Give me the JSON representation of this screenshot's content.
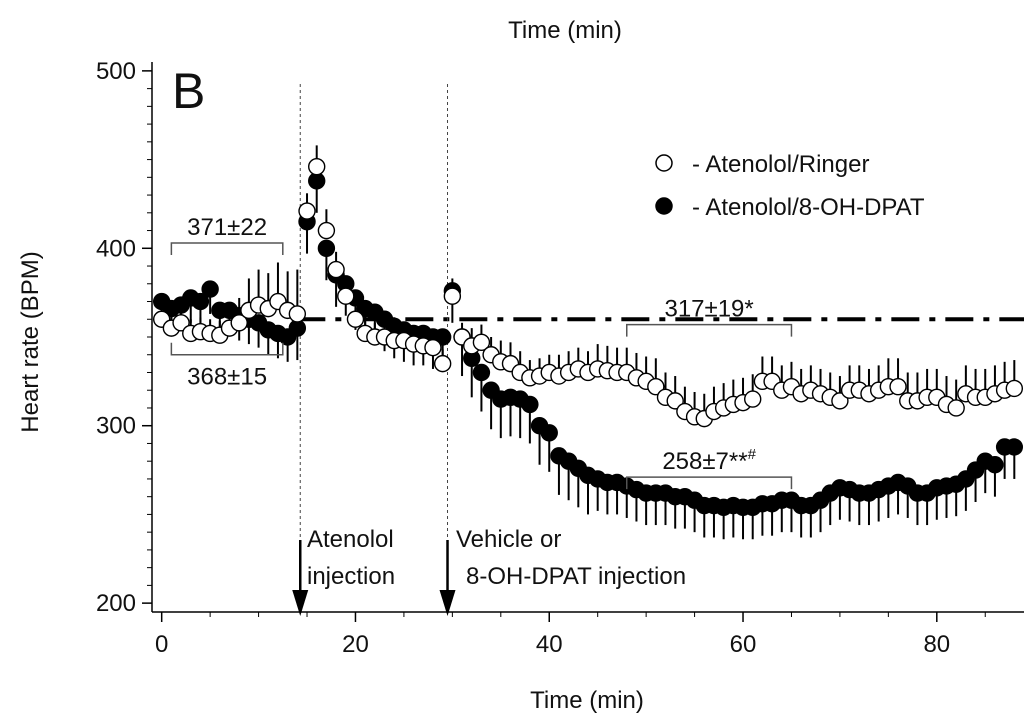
{
  "top_label": "Time (min)",
  "panel_label": "B",
  "chart_data": {
    "type": "scatter",
    "xlabel": "Time (min)",
    "ylabel": "Heart rate (BPM)",
    "xlim": [
      -1,
      89
    ],
    "ylim": [
      195,
      505
    ],
    "xticks": [
      0,
      20,
      40,
      60,
      80
    ],
    "yticks": [
      200,
      300,
      400,
      500
    ],
    "grid": false,
    "legend_position": "top-right",
    "colors": {
      "open": "#ffffff",
      "filled": "#000000",
      "stroke": "#000000"
    },
    "reference_line": {
      "y": 360,
      "x_start": 14,
      "x_end": 89,
      "style": "dash-dot"
    },
    "event_lines": [
      {
        "x": 14.3,
        "label_lines": [
          "Atenolol",
          "injection"
        ]
      },
      {
        "x": 29.5,
        "label_lines": [
          "Vehicle or",
          "8-OH-DPAT injection"
        ]
      }
    ],
    "brackets": [
      {
        "label": "371±22",
        "x0": 1,
        "x1": 12.5,
        "y": 403,
        "direction": "down"
      },
      {
        "label": "368±15",
        "x0": 1,
        "x1": 12.5,
        "y": 340,
        "direction": "up"
      },
      {
        "label": "317±19*",
        "x0": 48,
        "x1": 65,
        "y": 357,
        "direction": "down"
      },
      {
        "label": "258±7**",
        "superscript": "#",
        "x0": 48,
        "x1": 65,
        "y": 271,
        "direction": "down"
      }
    ],
    "series": [
      {
        "name": "- Atenolol/Ringer",
        "marker": "open",
        "x": [
          0,
          1,
          2,
          3,
          4,
          5,
          6,
          7,
          8,
          9,
          10,
          11,
          12,
          13,
          14,
          15,
          16,
          17,
          18,
          19,
          20,
          21,
          22,
          23,
          24,
          25,
          26,
          27,
          28,
          29,
          30,
          31,
          32,
          33,
          34,
          35,
          36,
          37,
          38,
          39,
          40,
          41,
          42,
          43,
          44,
          45,
          46,
          47,
          48,
          49,
          50,
          51,
          52,
          53,
          54,
          55,
          56,
          57,
          58,
          59,
          60,
          61,
          62,
          63,
          64,
          65,
          66,
          67,
          68,
          69,
          70,
          71,
          72,
          73,
          74,
          75,
          76,
          77,
          78,
          79,
          80,
          81,
          82,
          83,
          84,
          85,
          86,
          87,
          88
        ],
        "y": [
          360,
          355,
          358,
          352,
          353,
          352,
          351,
          355,
          358,
          365,
          368,
          366,
          370,
          365,
          363,
          421,
          446,
          410,
          388,
          373,
          360,
          352,
          350,
          350,
          348,
          348,
          346,
          345,
          344,
          335,
          373,
          350,
          345,
          347,
          340,
          336,
          335,
          330,
          327,
          328,
          330,
          328,
          330,
          332,
          330,
          332,
          331,
          330,
          330,
          327,
          325,
          322,
          316,
          314,
          308,
          305,
          304,
          308,
          310,
          312,
          313,
          315,
          325,
          325,
          320,
          322,
          318,
          320,
          318,
          316,
          314,
          320,
          320,
          318,
          320,
          322,
          322,
          314,
          314,
          316,
          316,
          312,
          310,
          318,
          316,
          316,
          318,
          320,
          321
        ],
        "err": [
          8,
          8,
          8,
          8,
          8,
          8,
          8,
          10,
          14,
          18,
          20,
          20,
          22,
          22,
          25,
          10,
          12,
          12,
          10,
          8,
          6,
          8,
          8,
          8,
          8,
          8,
          8,
          8,
          8,
          8,
          10,
          8,
          10,
          10,
          10,
          12,
          12,
          12,
          10,
          10,
          10,
          12,
          12,
          12,
          12,
          14,
          14,
          14,
          14,
          14,
          14,
          16,
          14,
          14,
          14,
          14,
          14,
          14,
          14,
          14,
          14,
          14,
          14,
          14,
          14,
          14,
          14,
          14,
          14,
          14,
          14,
          14,
          14,
          14,
          14,
          16,
          16,
          16,
          16,
          16,
          16,
          16,
          16,
          16,
          16,
          16,
          16,
          16,
          16
        ]
      },
      {
        "name": "- Atenolol/8-OH-DPAT",
        "marker": "filled",
        "x": [
          0,
          1,
          2,
          3,
          4,
          5,
          6,
          7,
          8,
          9,
          10,
          11,
          12,
          13,
          14,
          15,
          16,
          17,
          18,
          19,
          20,
          21,
          22,
          23,
          24,
          25,
          26,
          27,
          28,
          29,
          30,
          31,
          32,
          33,
          34,
          35,
          36,
          37,
          38,
          39,
          40,
          41,
          42,
          43,
          44,
          45,
          46,
          47,
          48,
          49,
          50,
          51,
          52,
          53,
          54,
          55,
          56,
          57,
          58,
          59,
          60,
          61,
          62,
          63,
          64,
          65,
          66,
          67,
          68,
          69,
          70,
          71,
          72,
          73,
          74,
          75,
          76,
          77,
          78,
          79,
          80,
          81,
          82,
          83,
          84,
          85,
          86,
          87,
          88
        ],
        "y": [
          370,
          366,
          368,
          372,
          370,
          377,
          365,
          365,
          362,
          360,
          358,
          354,
          352,
          350,
          355,
          415,
          438,
          400,
          385,
          380,
          372,
          366,
          364,
          360,
          356,
          354,
          352,
          352,
          350,
          350,
          376,
          350,
          338,
          330,
          320,
          315,
          316,
          315,
          312,
          300,
          296,
          283,
          280,
          276,
          272,
          270,
          268,
          268,
          266,
          264,
          262,
          262,
          262,
          260,
          260,
          258,
          255,
          255,
          254,
          255,
          254,
          254,
          256,
          256,
          258,
          258,
          255,
          255,
          258,
          262,
          265,
          264,
          262,
          262,
          264,
          266,
          268,
          266,
          262,
          262,
          265,
          266,
          267,
          270,
          275,
          280,
          278,
          288,
          288
        ]
      }
    ]
  }
}
